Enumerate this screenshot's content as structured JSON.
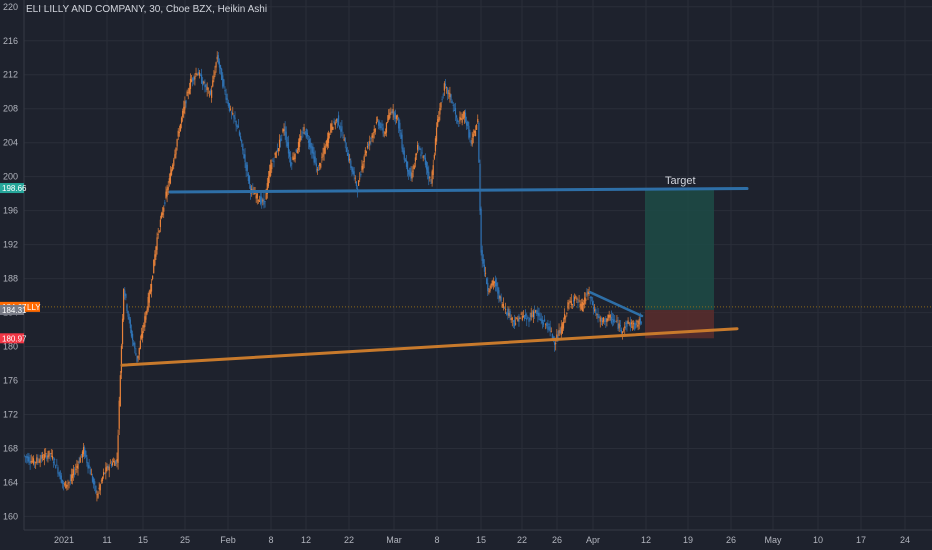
{
  "header": {
    "title": "ELI LILLY AND COMPANY, 30, Cboe BZX, Heikin Ashi"
  },
  "colors": {
    "background": "#1e222d",
    "grid": "#2a2e39",
    "axis_text": "#b2b5be",
    "candle_up": "#e8823a",
    "candle_down": "#2f73b5",
    "support_line": "#c87a2c",
    "resistance_line": "#2e6fa7",
    "target_zone": "#1d4b46",
    "stop_zone": "#5a2d2d",
    "badge_price": "#ff6a00",
    "badge_target": "#26a69a",
    "badge_neutral": "#787b86",
    "badge_stop": "#f23645"
  },
  "chart_data": {
    "type": "candlestick",
    "title": "ELI LILLY AND COMPANY, 30, Cboe BZX, Heikin Ashi",
    "ylim": [
      158.4,
      220.8
    ],
    "y_ticks": [
      160,
      164,
      168,
      172,
      176,
      180,
      184,
      188,
      192,
      196,
      200,
      204,
      208,
      212,
      216,
      220
    ],
    "x_ticks": [
      "2021",
      "11",
      "15",
      "25",
      "Feb",
      "8",
      "12",
      "22",
      "Mar",
      "8",
      "15",
      "22",
      "26",
      "Apr",
      "12",
      "19",
      "26",
      "May",
      "10",
      "17",
      "24"
    ],
    "price_path": [
      [
        0,
        167.2
      ],
      [
        3,
        166.4
      ],
      [
        5,
        166.8
      ],
      [
        8,
        167.4
      ],
      [
        10,
        165.8
      ],
      [
        12,
        163.6
      ],
      [
        14,
        164.2
      ],
      [
        16,
        166.0
      ],
      [
        18,
        167.8
      ],
      [
        20,
        165.2
      ],
      [
        22,
        162.4
      ],
      [
        24,
        165.0
      ],
      [
        26,
        166.2
      ],
      [
        28,
        166.6
      ],
      [
        30,
        187.0
      ],
      [
        32,
        182.0
      ],
      [
        34,
        178.4
      ],
      [
        36,
        182.6
      ],
      [
        38,
        186.8
      ],
      [
        40,
        192.8
      ],
      [
        42,
        196.6
      ],
      [
        44,
        200.2
      ],
      [
        46,
        204.4
      ],
      [
        48,
        208.0
      ],
      [
        50,
        211.2
      ],
      [
        52,
        212.4
      ],
      [
        54,
        210.8
      ],
      [
        56,
        209.6
      ],
      [
        58,
        214.2
      ],
      [
        60,
        210.4
      ],
      [
        62,
        207.6
      ],
      [
        64,
        206.0
      ],
      [
        66,
        202.4
      ],
      [
        68,
        198.4
      ],
      [
        70,
        197.6
      ],
      [
        72,
        196.8
      ],
      [
        74,
        201.2
      ],
      [
        76,
        203.2
      ],
      [
        78,
        205.8
      ],
      [
        80,
        201.6
      ],
      [
        82,
        203.4
      ],
      [
        84,
        205.6
      ],
      [
        86,
        203.6
      ],
      [
        88,
        200.6
      ],
      [
        90,
        203.0
      ],
      [
        92,
        205.8
      ],
      [
        94,
        206.8
      ],
      [
        96,
        204.2
      ],
      [
        98,
        201.2
      ],
      [
        100,
        198.6
      ],
      [
        102,
        202.6
      ],
      [
        104,
        204.6
      ],
      [
        106,
        206.6
      ],
      [
        108,
        205.0
      ],
      [
        110,
        208.0
      ],
      [
        112,
        206.8
      ],
      [
        114,
        202.2
      ],
      [
        116,
        199.8
      ],
      [
        118,
        203.4
      ],
      [
        120,
        202.0
      ],
      [
        122,
        199.2
      ],
      [
        124,
        206.8
      ],
      [
        126,
        210.6
      ],
      [
        128,
        209.2
      ],
      [
        130,
        206.2
      ],
      [
        132,
        207.4
      ],
      [
        134,
        203.8
      ],
      [
        136,
        206.6
      ],
      [
        137,
        191.2
      ],
      [
        139,
        186.8
      ],
      [
        141,
        187.6
      ],
      [
        143,
        185.2
      ],
      [
        145,
        184.0
      ],
      [
        147,
        182.8
      ],
      [
        149,
        183.6
      ],
      [
        151,
        183.2
      ],
      [
        153,
        184.2
      ],
      [
        155,
        183.0
      ],
      [
        157,
        182.4
      ],
      [
        159,
        180.6
      ],
      [
        161,
        182.0
      ],
      [
        163,
        184.8
      ],
      [
        165,
        185.8
      ],
      [
        167,
        184.6
      ],
      [
        169,
        186.4
      ],
      [
        171,
        184.2
      ],
      [
        173,
        182.8
      ],
      [
        175,
        183.4
      ],
      [
        177,
        183.0
      ],
      [
        179,
        182.0
      ],
      [
        181,
        182.8
      ],
      [
        183,
        182.4
      ],
      [
        185,
        183.1
      ]
    ],
    "drawings": {
      "resistance_line": {
        "from": [
          40,
          198.2
        ],
        "to": [
          200,
          198.6
        ]
      },
      "support_line": {
        "from": [
          34,
          177.8
        ],
        "to": [
          200,
          182.1
        ]
      },
      "falling_trend": {
        "from": [
          162,
          186.4
        ],
        "to": [
          173,
          183.6
        ]
      },
      "last_price_line": 184.67
    },
    "position": {
      "entry": 184.31,
      "target": 198.66,
      "stop": 180.97,
      "target_label": "Target"
    },
    "price_badges": [
      {
        "value": 198.66,
        "label": "198.66",
        "kind": "target"
      },
      {
        "value": 184.67,
        "label": "184.67",
        "kind": "price",
        "ticker": "LLY"
      },
      {
        "value": 184.31,
        "label": "184.31",
        "kind": "neutral"
      },
      {
        "value": 180.97,
        "label": "180.97",
        "kind": "stop"
      }
    ]
  }
}
